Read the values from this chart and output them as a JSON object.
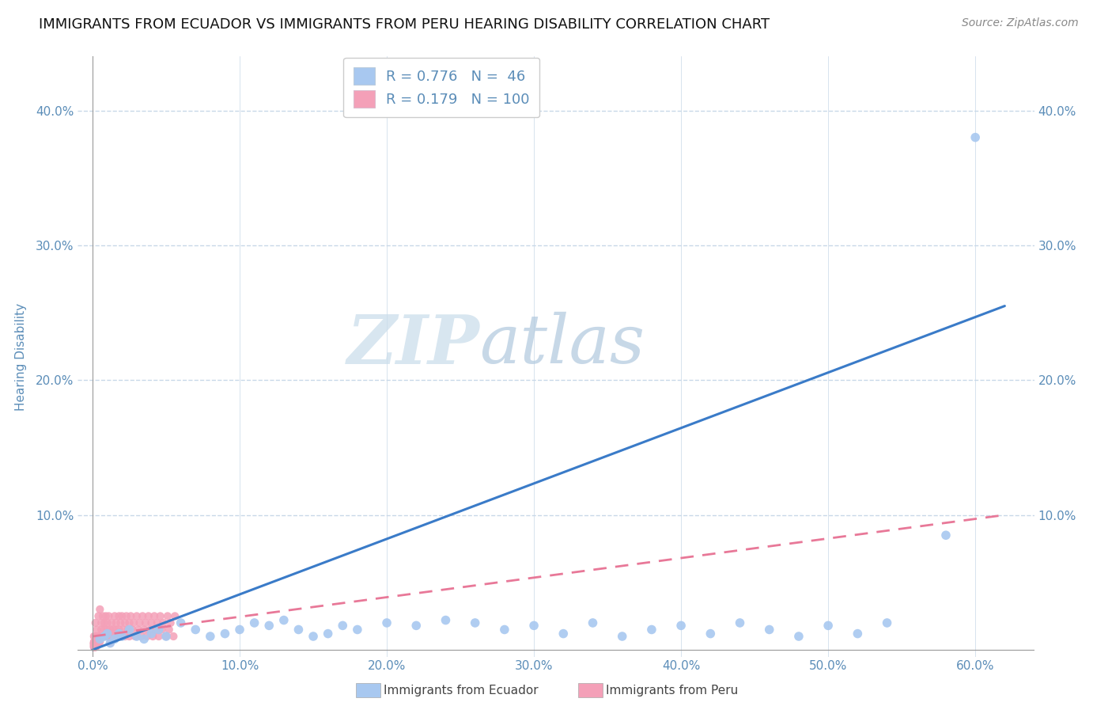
{
  "title": "IMMIGRANTS FROM ECUADOR VS IMMIGRANTS FROM PERU HEARING DISABILITY CORRELATION CHART",
  "source": "Source: ZipAtlas.com",
  "ylabel": "Hearing Disability",
  "x_ticks": [
    0.0,
    0.1,
    0.2,
    0.3,
    0.4,
    0.5,
    0.6
  ],
  "x_tick_labels": [
    "0.0%",
    "10.0%",
    "20.0%",
    "30.0%",
    "40.0%",
    "50.0%",
    "60.0%"
  ],
  "y_ticks": [
    0.0,
    0.1,
    0.2,
    0.3,
    0.4
  ],
  "y_tick_labels": [
    "",
    "10.0%",
    "20.0%",
    "30.0%",
    "40.0%"
  ],
  "xlim": [
    -0.01,
    0.64
  ],
  "ylim": [
    -0.005,
    0.44
  ],
  "ecuador_color": "#a8c8f0",
  "peru_color": "#f4a0b8",
  "ecuador_line_color": "#3a7bc8",
  "peru_line_color": "#e87898",
  "ecuador_R": 0.776,
  "ecuador_N": 46,
  "peru_R": 0.179,
  "peru_N": 100,
  "legend_label_ecuador": "Immigrants from Ecuador",
  "legend_label_peru": "Immigrants from Peru",
  "watermark_zip": "ZIP",
  "watermark_atlas": "atlas",
  "title_fontsize": 13,
  "axis_label_color": "#5b8db8",
  "tick_color": "#5b8db8",
  "grid_color": "#c8d8e8",
  "background_color": "#ffffff",
  "ecuador_line": {
    "x0": 0.0,
    "y0": 0.0,
    "x1": 0.62,
    "y1": 0.255
  },
  "peru_line": {
    "x0": 0.0,
    "y0": 0.01,
    "x1": 0.62,
    "y1": 0.1
  },
  "ecuador_scatter_x": [
    0.005,
    0.008,
    0.01,
    0.012,
    0.015,
    0.018,
    0.02,
    0.025,
    0.03,
    0.035,
    0.04,
    0.045,
    0.05,
    0.06,
    0.07,
    0.08,
    0.09,
    0.1,
    0.11,
    0.12,
    0.13,
    0.14,
    0.15,
    0.16,
    0.17,
    0.18,
    0.2,
    0.22,
    0.24,
    0.26,
    0.28,
    0.3,
    0.32,
    0.34,
    0.36,
    0.38,
    0.4,
    0.42,
    0.44,
    0.46,
    0.48,
    0.5,
    0.52,
    0.54,
    0.6,
    0.58
  ],
  "ecuador_scatter_y": [
    0.008,
    0.01,
    0.012,
    0.005,
    0.008,
    0.012,
    0.01,
    0.015,
    0.01,
    0.008,
    0.012,
    0.015,
    0.01,
    0.02,
    0.015,
    0.01,
    0.012,
    0.015,
    0.02,
    0.018,
    0.022,
    0.015,
    0.01,
    0.012,
    0.018,
    0.015,
    0.02,
    0.018,
    0.022,
    0.02,
    0.015,
    0.018,
    0.012,
    0.02,
    0.01,
    0.015,
    0.018,
    0.012,
    0.02,
    0.015,
    0.01,
    0.018,
    0.012,
    0.02,
    0.38,
    0.085
  ],
  "peru_scatter_x": [
    0.002,
    0.003,
    0.004,
    0.005,
    0.005,
    0.006,
    0.006,
    0.007,
    0.007,
    0.008,
    0.008,
    0.009,
    0.009,
    0.01,
    0.01,
    0.011,
    0.011,
    0.012,
    0.012,
    0.013,
    0.013,
    0.014,
    0.015,
    0.015,
    0.016,
    0.016,
    0.017,
    0.018,
    0.018,
    0.019,
    0.02,
    0.02,
    0.021,
    0.022,
    0.022,
    0.023,
    0.024,
    0.025,
    0.025,
    0.026,
    0.027,
    0.028,
    0.029,
    0.03,
    0.031,
    0.032,
    0.033,
    0.034,
    0.035,
    0.036,
    0.037,
    0.038,
    0.039,
    0.04,
    0.041,
    0.042,
    0.043,
    0.044,
    0.045,
    0.046,
    0.047,
    0.048,
    0.05,
    0.051,
    0.052,
    0.053,
    0.055,
    0.056,
    0.001,
    0.001,
    0.002,
    0.002,
    0.003,
    0.003,
    0.004,
    0.004,
    0.001,
    0.001,
    0.002,
    0.002,
    0.003,
    0.003,
    0.001,
    0.001,
    0.002,
    0.003,
    0.001,
    0.001,
    0.001,
    0.001,
    0.001,
    0.002,
    0.002,
    0.003,
    0.003,
    0.004,
    0.004,
    0.005
  ],
  "peru_scatter_y": [
    0.02,
    0.015,
    0.025,
    0.01,
    0.03,
    0.015,
    0.02,
    0.01,
    0.025,
    0.015,
    0.02,
    0.01,
    0.025,
    0.015,
    0.02,
    0.01,
    0.025,
    0.015,
    0.005,
    0.01,
    0.02,
    0.015,
    0.01,
    0.025,
    0.015,
    0.02,
    0.01,
    0.025,
    0.015,
    0.02,
    0.01,
    0.025,
    0.015,
    0.02,
    0.01,
    0.025,
    0.015,
    0.02,
    0.01,
    0.025,
    0.015,
    0.02,
    0.01,
    0.025,
    0.015,
    0.02,
    0.01,
    0.025,
    0.015,
    0.02,
    0.01,
    0.025,
    0.015,
    0.02,
    0.01,
    0.025,
    0.015,
    0.02,
    0.01,
    0.025,
    0.015,
    0.02,
    0.01,
    0.025,
    0.015,
    0.02,
    0.01,
    0.025,
    0.005,
    0.01,
    0.005,
    0.01,
    0.005,
    0.01,
    0.005,
    0.01,
    0.003,
    0.006,
    0.003,
    0.006,
    0.003,
    0.006,
    0.002,
    0.005,
    0.002,
    0.005,
    0.002,
    0.004,
    0.003,
    0.005,
    0.004,
    0.003,
    0.006,
    0.004,
    0.007,
    0.005,
    0.008,
    0.006
  ]
}
